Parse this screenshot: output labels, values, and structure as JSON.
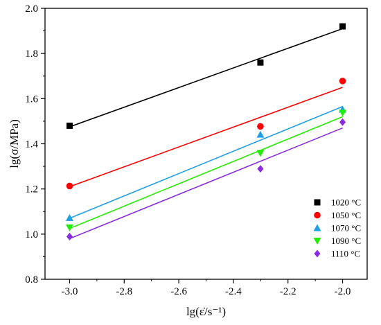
{
  "chart_data": {
    "type": "scatter",
    "title": "",
    "xlabel": "lg(ε̇/s⁻¹)",
    "ylabel": "lg(σ/MPa)",
    "xlim": [
      -3.09,
      -1.91
    ],
    "ylim": [
      0.8,
      2.0
    ],
    "xticks": [
      -3.0,
      -2.8,
      -2.6,
      -2.4,
      -2.2,
      -2.0
    ],
    "xtick_labels": [
      "-3.0",
      "-2.8",
      "-2.6",
      "-2.4",
      "-2.2",
      "-2.0"
    ],
    "yticks": [
      0.8,
      1.0,
      1.2,
      1.4,
      1.6,
      1.8,
      2.0
    ],
    "ytick_labels": [
      "0.8",
      "1.0",
      "1.2",
      "1.4",
      "1.6",
      "1.8",
      "2.0"
    ],
    "grid": false,
    "legend_position": "bottom-right",
    "series": [
      {
        "name": "1020 °C",
        "color": "#000000",
        "marker": "square",
        "x": [
          -3.0,
          -2.301,
          -2.0
        ],
        "y": [
          1.48,
          1.76,
          1.92
        ],
        "fit": {
          "x": [
            -3.0,
            -2.0
          ],
          "y": [
            1.475,
            1.91
          ]
        }
      },
      {
        "name": "1050 °C",
        "color": "#ff0000",
        "marker": "circle",
        "x": [
          -3.0,
          -2.301,
          -2.0
        ],
        "y": [
          1.213,
          1.477,
          1.678
        ],
        "fit": {
          "x": [
            -3.0,
            -2.0
          ],
          "y": [
            1.21,
            1.65
          ]
        }
      },
      {
        "name": "1070 °C",
        "color": "#1e9fe6",
        "marker": "triangle-up",
        "x": [
          -3.0,
          -2.301,
          -2.0
        ],
        "y": [
          1.072,
          1.441,
          1.552
        ],
        "fit": {
          "x": [
            -3.0,
            -2.0
          ],
          "y": [
            1.07,
            1.565
          ]
        }
      },
      {
        "name": "1090 °C",
        "color": "#22ee00",
        "marker": "triangle-down",
        "x": [
          -3.0,
          -2.301,
          -2.0
        ],
        "y": [
          1.029,
          1.359,
          1.537
        ],
        "fit": {
          "x": [
            -3.0,
            -2.0
          ],
          "y": [
            1.025,
            1.52
          ]
        }
      },
      {
        "name": "1110 °C",
        "color": "#8a2be2",
        "marker": "diamond",
        "x": [
          -3.0,
          -2.301,
          -2.0
        ],
        "y": [
          0.989,
          1.289,
          1.496
        ],
        "fit": {
          "x": [
            -3.0,
            -2.0
          ],
          "y": [
            0.98,
            1.47
          ]
        }
      }
    ]
  }
}
